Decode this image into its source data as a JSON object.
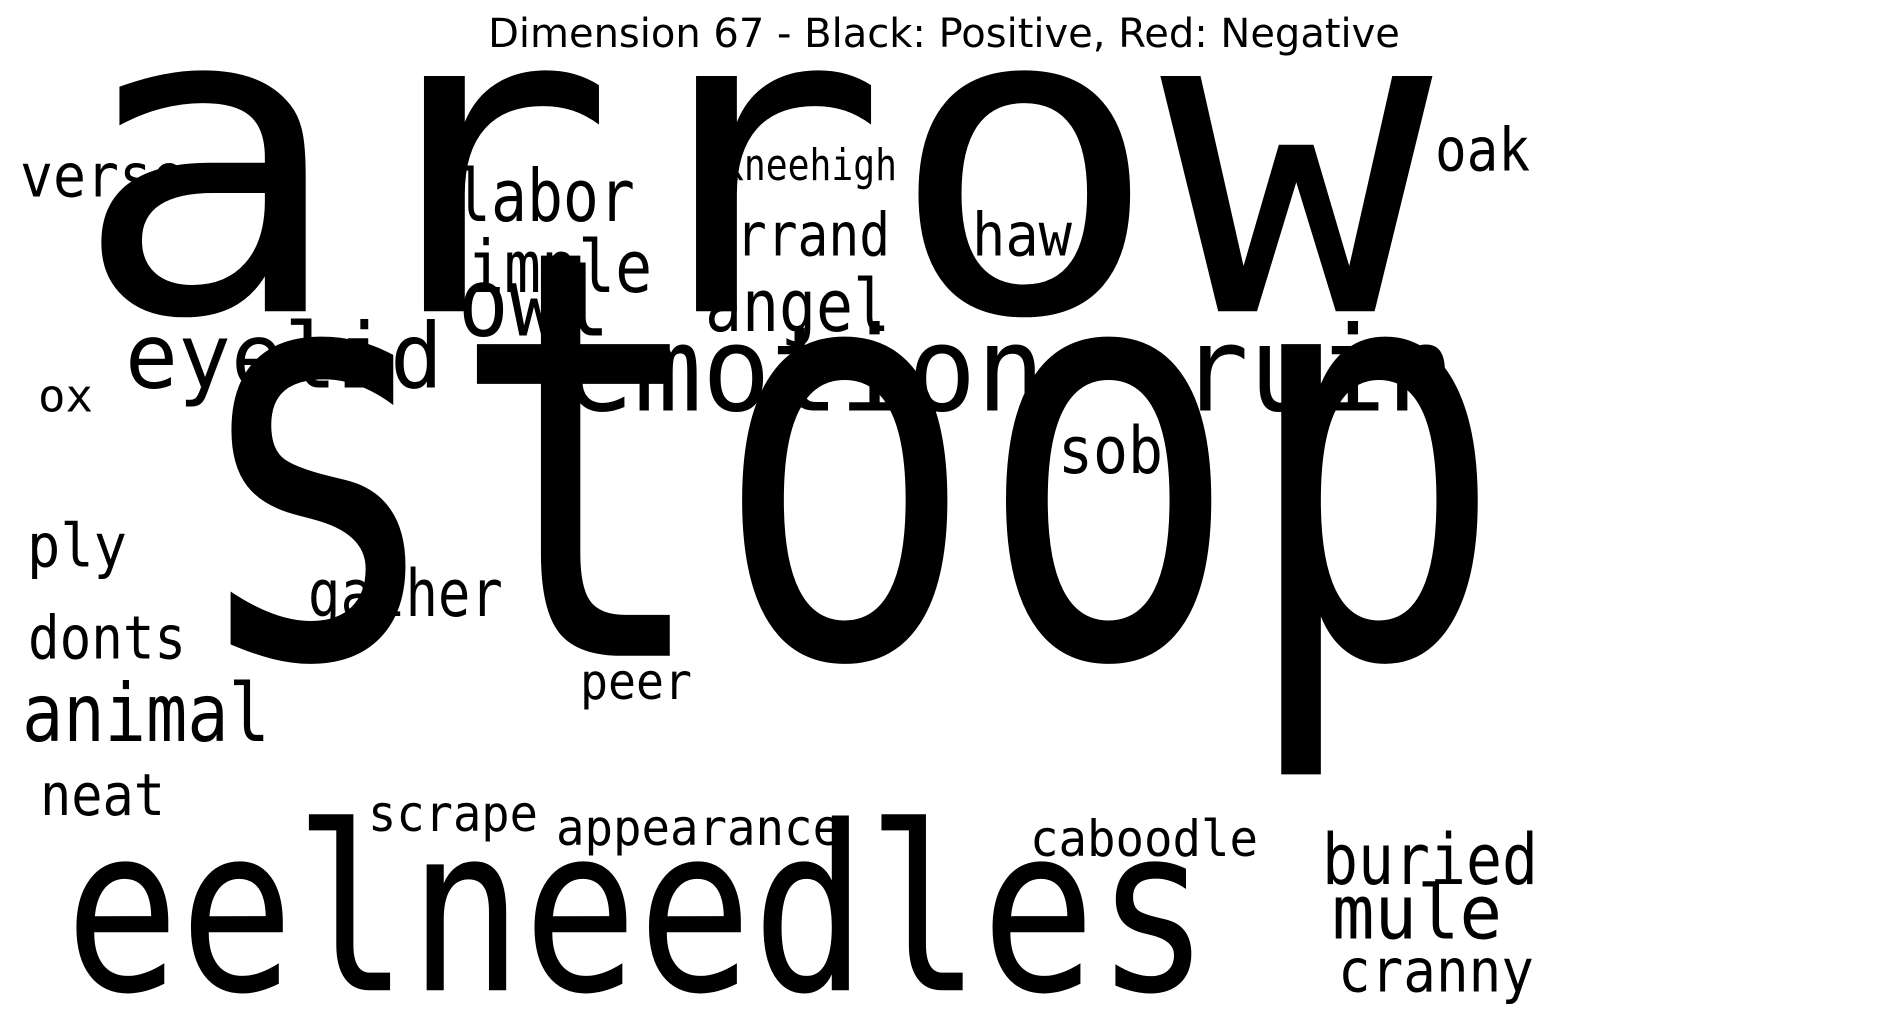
{
  "title": "Dimension 67 - Black: Positive, Red: Negative",
  "colors": {
    "positive": "#000000",
    "negative": "#ff0000",
    "background": "#ffffff"
  },
  "words": [
    {
      "text": "arrow",
      "polarity": "positive"
    },
    {
      "text": "stoop",
      "polarity": "positive"
    },
    {
      "text": "eelneedles",
      "polarity": "positive"
    },
    {
      "text": "emotion",
      "polarity": "positive"
    },
    {
      "text": "ruin",
      "polarity": "positive"
    },
    {
      "text": "eyelid",
      "polarity": "positive"
    },
    {
      "text": "owl",
      "polarity": "positive"
    },
    {
      "text": "labor",
      "polarity": "positive"
    },
    {
      "text": "simple",
      "polarity": "positive"
    },
    {
      "text": "angel",
      "polarity": "positive"
    },
    {
      "text": "errand",
      "polarity": "positive"
    },
    {
      "text": "haw",
      "polarity": "positive"
    },
    {
      "text": "kneehigh",
      "polarity": "positive"
    },
    {
      "text": "verse",
      "polarity": "positive"
    },
    {
      "text": "oak",
      "polarity": "positive"
    },
    {
      "text": "ox",
      "polarity": "positive"
    },
    {
      "text": "sob",
      "polarity": "positive"
    },
    {
      "text": "ply",
      "polarity": "positive"
    },
    {
      "text": "gather",
      "polarity": "positive"
    },
    {
      "text": "donts",
      "polarity": "positive"
    },
    {
      "text": "animal",
      "polarity": "positive"
    },
    {
      "text": "peer",
      "polarity": "positive"
    },
    {
      "text": "neat",
      "polarity": "positive"
    },
    {
      "text": "scrape",
      "polarity": "positive"
    },
    {
      "text": "appearance",
      "polarity": "positive"
    },
    {
      "text": "caboodle",
      "polarity": "positive"
    },
    {
      "text": "buried",
      "polarity": "positive"
    },
    {
      "text": "mule",
      "polarity": "positive"
    },
    {
      "text": "cranny",
      "polarity": "positive"
    }
  ]
}
